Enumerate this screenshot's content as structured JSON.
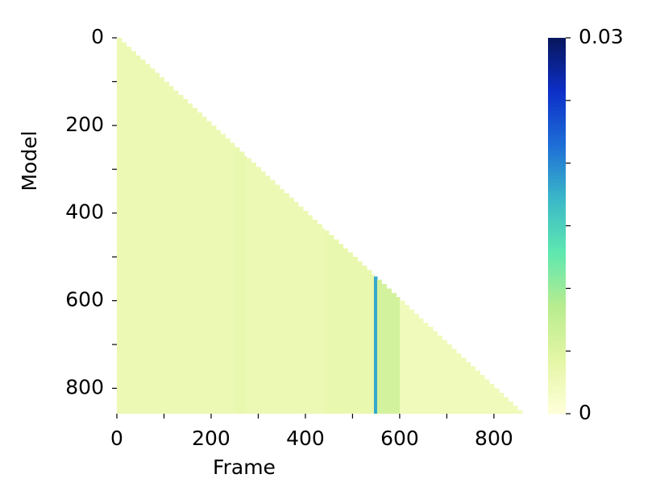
{
  "chart_data": {
    "type": "heatmap",
    "xlabel": "Frame",
    "ylabel": "Model",
    "xlim": [
      0,
      860
    ],
    "ylim": [
      0,
      858
    ],
    "xticks": [
      0,
      200,
      400,
      600,
      800
    ],
    "x_minor_ticks": [
      100,
      300,
      500,
      700
    ],
    "yticks": [
      0,
      200,
      400,
      600,
      800
    ],
    "y_minor_ticks": [
      100,
      300,
      500,
      700
    ],
    "stripes": [
      {
        "x": [
          0,
          250
        ],
        "value": 0.003
      },
      {
        "x": [
          250,
          275
        ],
        "value": 0.0035
      },
      {
        "x": [
          275,
          440
        ],
        "value": 0.003
      },
      {
        "x": [
          440,
          545
        ],
        "value": 0.0035
      },
      {
        "x": [
          545,
          552
        ],
        "value": 0.018
      },
      {
        "x": [
          552,
          600
        ],
        "value": 0.006
      },
      {
        "x": [
          600,
          860
        ],
        "value": 0.0025
      }
    ],
    "colormap": [
      "#ffffd9",
      "#e4f6a6",
      "#b9ec8f",
      "#5fe8b0",
      "#3bb8c8",
      "#1e6fd6",
      "#0d2fc9",
      "#08165c"
    ],
    "colorbar": {
      "clim": [
        0,
        0.03
      ],
      "ticks": [
        0,
        0.03
      ],
      "minor_ticks": [
        0.005,
        0.01,
        0.015,
        0.02,
        0.025
      ]
    }
  }
}
